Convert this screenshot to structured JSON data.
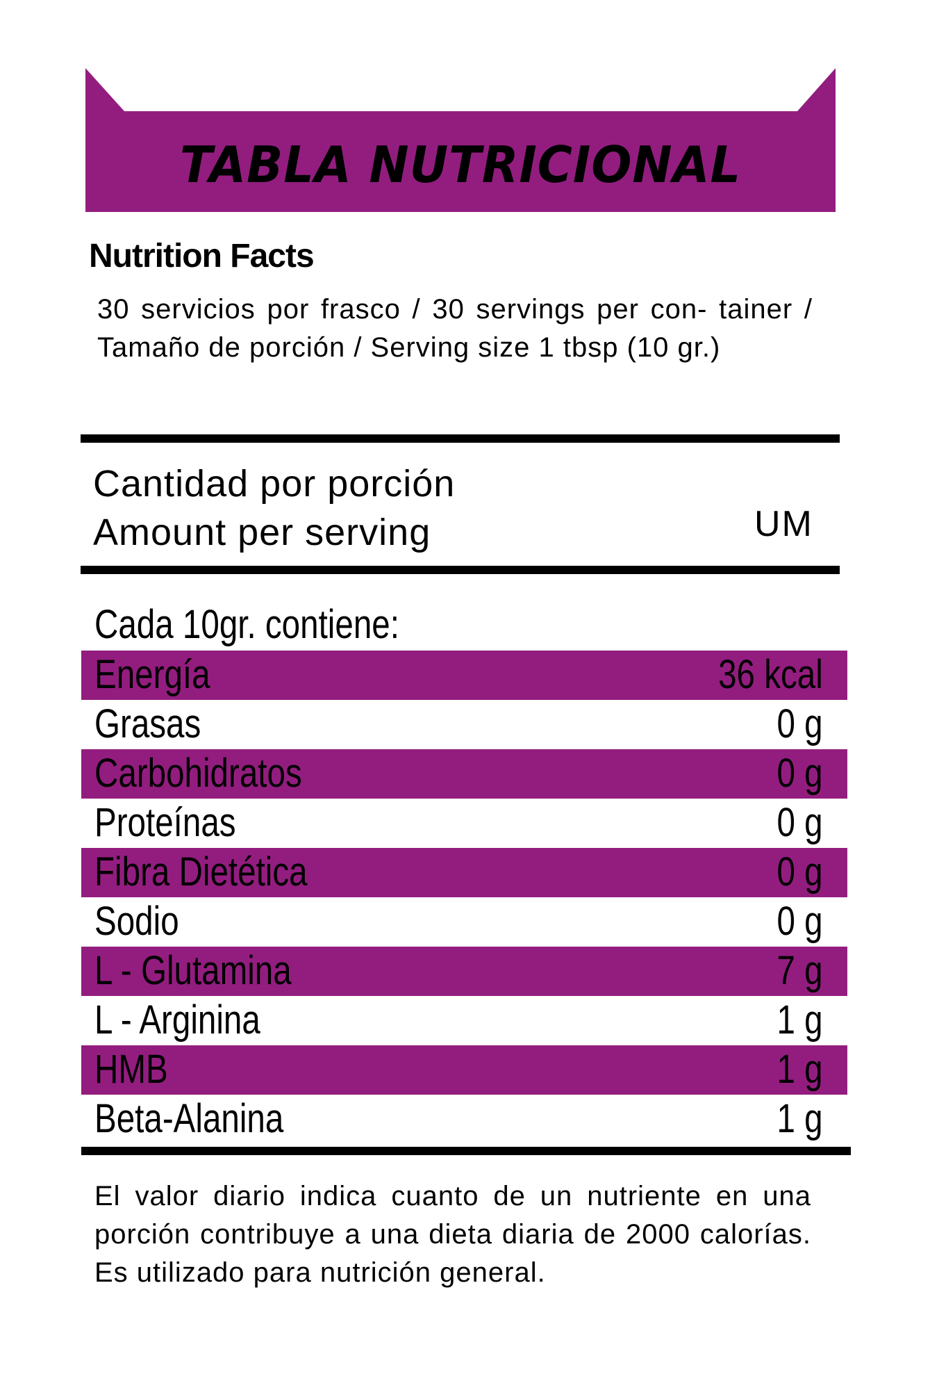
{
  "banner": {
    "title": "TABLA NUTRICIONAL",
    "color": "#931d7f"
  },
  "header": {
    "title": "Nutrition Facts",
    "serving_info": "30 servicios por frasco / 30 servings per con- tainer / Tamaño de porción / Serving size 1 tbsp (10 gr.)"
  },
  "amount": {
    "line1": "Cantidad por porción",
    "line2": "Amount per serving",
    "unit_header": "UM"
  },
  "table": {
    "intro": "Cada 10gr. contiene:",
    "highlight_color": "#931d7f",
    "rows": [
      {
        "label": "Energía",
        "value": "36 kcal"
      },
      {
        "label": "Grasas",
        "value": "0 g"
      },
      {
        "label": "Carbohidratos",
        "value": "0 g"
      },
      {
        "label": "Proteínas",
        "value": "0 g"
      },
      {
        "label": "Fibra Dietética",
        "value": "0 g"
      },
      {
        "label": "Sodio",
        "value": "0 g"
      },
      {
        "label": "L - Glutamina",
        "value": "7 g"
      },
      {
        "label": "L - Arginina",
        "value": "1 g"
      },
      {
        "label": "HMB",
        "value": "1 g"
      },
      {
        "label": "Beta-Alanina",
        "value": "1 g"
      }
    ]
  },
  "footer": {
    "note": "El valor diario indica cuanto de un nutriente en una porción contribuye a una dieta diaria de 2000 calorías. Es utilizado para nutrición general."
  }
}
